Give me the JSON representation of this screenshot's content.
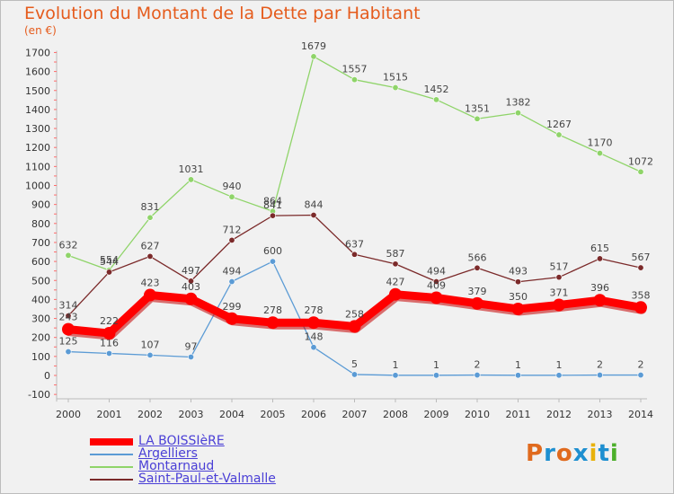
{
  "title": "Evolution du Montant de la Dette par Habitant",
  "unit_label": "(en €)",
  "brand": {
    "text": "Proxiti",
    "colors": [
      "#e06a1e",
      "#1e8fd0",
      "#e06a1e",
      "#1e8fd0",
      "#e8b20c",
      "#1e8fd0",
      "#4caf2a"
    ]
  },
  "chart_data": {
    "type": "line",
    "title": "Evolution du Montant de la Dette par Habitant",
    "ylabel": "(en €)",
    "ylim": [
      -100,
      1700
    ],
    "yticks": [
      -100,
      0,
      100,
      200,
      300,
      400,
      500,
      600,
      700,
      800,
      900,
      1000,
      1100,
      1200,
      1300,
      1400,
      1500,
      1600,
      1700
    ],
    "grid": false,
    "legend": "bottom-left",
    "categories": [
      "2000",
      "2001",
      "2002",
      "2003",
      "2004",
      "2005",
      "2006",
      "2007",
      "2008",
      "2009",
      "2010",
      "2011",
      "2012",
      "2013",
      "2014"
    ],
    "series": [
      {
        "name": "LA BOISSIèRE",
        "color": "#ff0000",
        "values": [
          243,
          222,
          423,
          403,
          299,
          278,
          278,
          258,
          427,
          409,
          379,
          350,
          371,
          396,
          358
        ]
      },
      {
        "name": "Argelliers",
        "color": "#5b9bd5",
        "values": [
          125,
          116,
          107,
          97,
          494,
          600,
          148,
          5,
          1,
          1,
          2,
          1,
          1,
          2,
          2
        ]
      },
      {
        "name": "Montarnaud",
        "color": "#8fd469",
        "values": [
          632,
          554,
          831,
          1031,
          940,
          864,
          1679,
          1557,
          1515,
          1452,
          1351,
          1382,
          1267,
          1170,
          1072
        ]
      },
      {
        "name": "Saint-Paul-et-Valmalle",
        "color": "#7b2a2a",
        "values": [
          314,
          544,
          627,
          497,
          712,
          841,
          844,
          637,
          587,
          494,
          566,
          493,
          517,
          615,
          567
        ]
      }
    ]
  }
}
